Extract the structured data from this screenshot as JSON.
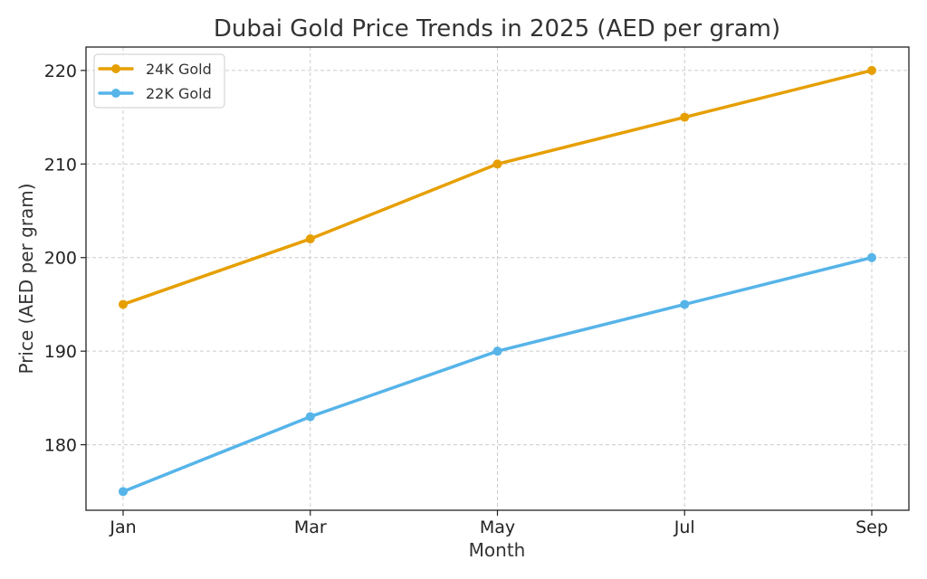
{
  "chart_data": {
    "type": "line",
    "title": "Dubai Gold Price Trends in 2025 (AED per gram)",
    "xlabel": "Month",
    "ylabel": "Price (AED per gram)",
    "categories": [
      "Jan",
      "Mar",
      "May",
      "Jul",
      "Sep"
    ],
    "ylim": [
      173,
      222.5
    ],
    "yticks": [
      180,
      190,
      200,
      210,
      220
    ],
    "grid": true,
    "legend_position": "top-left",
    "series": [
      {
        "name": "24K Gold",
        "color": "#E69F00",
        "values": [
          195,
          202,
          210,
          215,
          220
        ]
      },
      {
        "name": "22K Gold",
        "color": "#56B4E9",
        "values": [
          175,
          183,
          190,
          195,
          200
        ]
      }
    ]
  }
}
